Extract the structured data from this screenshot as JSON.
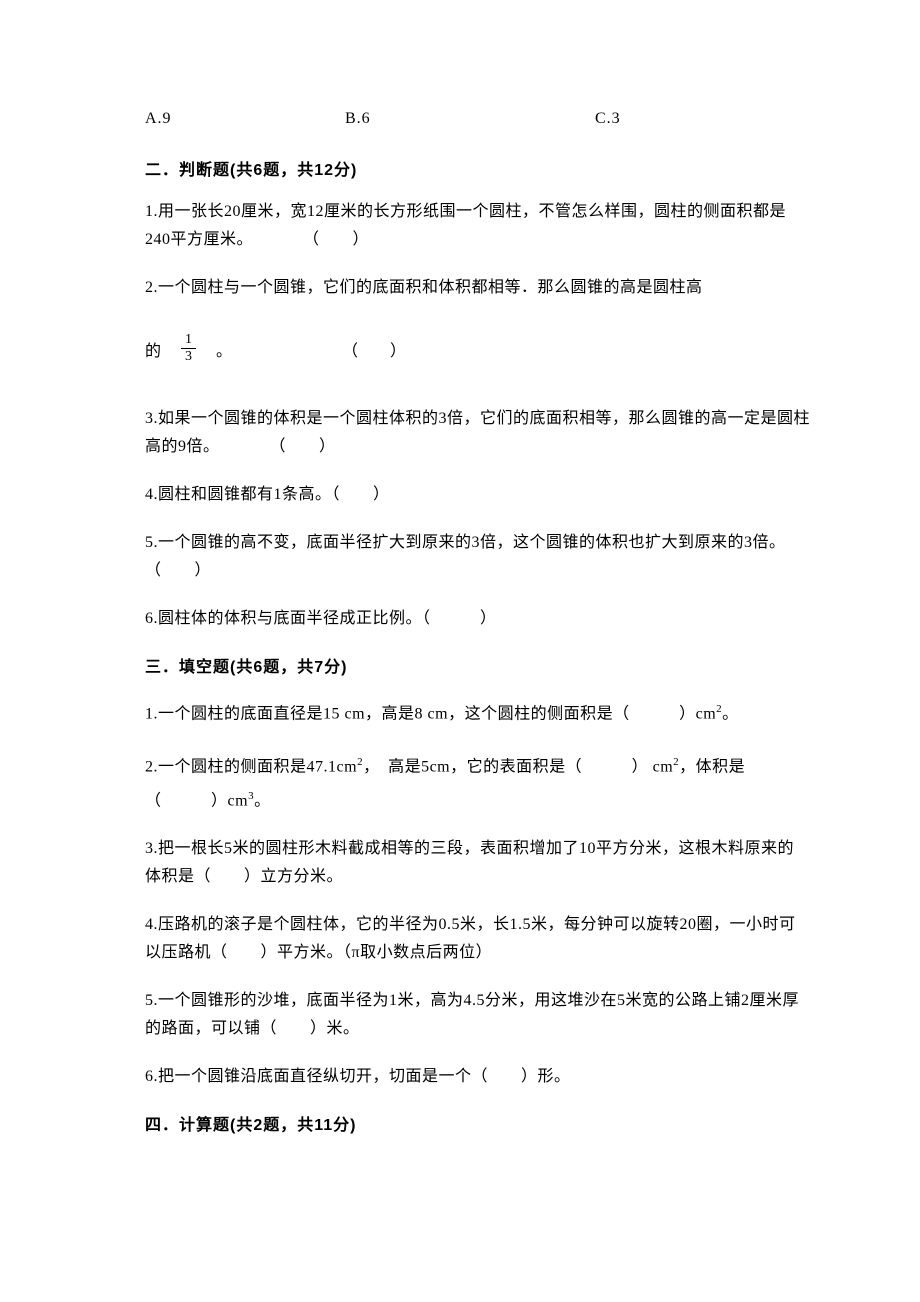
{
  "q_prev_options": {
    "a": "A.9",
    "b": "B.6",
    "c": "C.3"
  },
  "section2": {
    "header": "二．判断题(共6题，共12分)",
    "q1": "1.用一张长20厘米，宽12厘米的长方形纸围一个圆柱，不管怎么样围，圆柱的侧面积都是240平方厘米。　　　　（　　）",
    "q2_line1": "2.一个圆柱与一个圆锥，它们的底面积和体积都相等．那么圆锥的高是圆柱高",
    "q2_prefix": "的　",
    "q2_frac_num": "1",
    "q2_frac_den": "3",
    "q2_suffix": "　。",
    "q2_paren": "（　　）",
    "q3": "3.如果一个圆锥的体积是一个圆柱体积的3倍，它们的底面积相等，那么圆锥的高一定是圆柱高的9倍。　　　　（　　）",
    "q4": "4.圆柱和圆锥都有1条高。（　　）",
    "q5": "5.一个圆锥的高不变，底面半径扩大到原来的3倍，这个圆锥的体积也扩大到原来的3倍。（　　）",
    "q6": "6.圆柱体的体积与底面半径成正比例。（　　　）"
  },
  "section3": {
    "header": "三．填空题(共6题，共7分)",
    "q1_a": "1.一个圆柱的底面直径是15 cm，高是8 cm，这个圆柱的侧面积是（　　　）cm",
    "q1_b": "。",
    "q2_a": "2.一个圆柱的侧面积是47.1cm",
    "q2_b": "，　高是5cm，它的表面积是（　　　） cm",
    "q2_c": "，体积是（　　　）cm",
    "q2_d": "。",
    "q3": "3.把一根长5米的圆柱形木料截成相等的三段，表面积增加了10平方分米，这根木料原来的体积是（　　）立方分米。",
    "q4": "4.压路机的滚子是个圆柱体，它的半径为0.5米，长1.5米，每分钟可以旋转20圈，一小时可以压路机（　　）平方米。（π取小数点后两位）",
    "q5": "5.一个圆锥形的沙堆，底面半径为1米，高为4.5分米，用这堆沙在5米宽的公路上铺2厘米厚的路面，可以铺（　　）米。",
    "q6": "6.把一个圆锥沿底面直径纵切开，切面是一个（　　）形。"
  },
  "section4": {
    "header": "四．计算题(共2题，共11分)"
  }
}
